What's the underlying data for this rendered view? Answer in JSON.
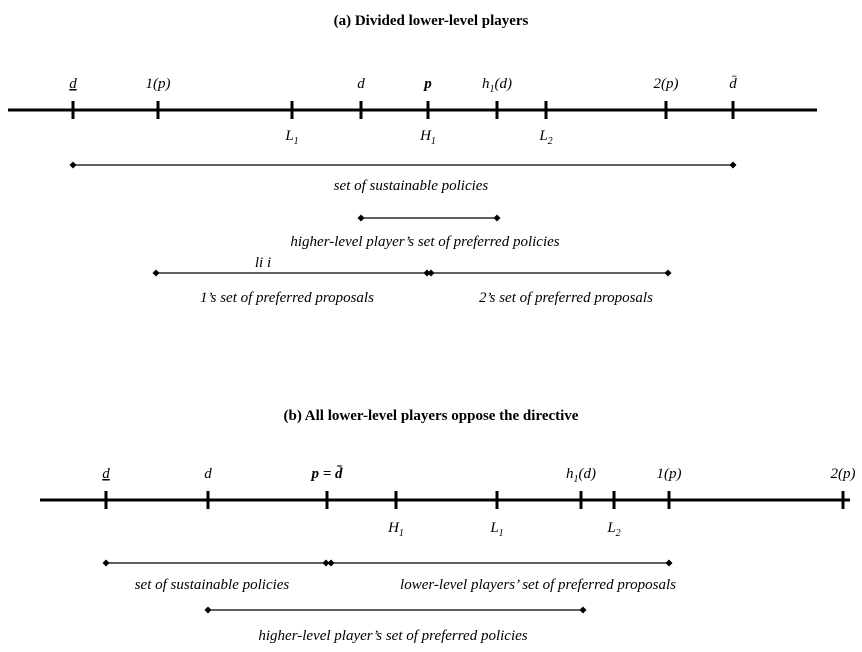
{
  "panel_a": {
    "title": "(a) Divided lower-level players",
    "top_labels": [
      "d",
      "1(p)",
      "d",
      "p",
      {
        "base": "h",
        "sub": "1",
        "tail": "(d)"
      },
      "2(p)",
      "d̄"
    ],
    "bottom_labels": [
      {
        "base": "L",
        "sub": "1"
      },
      {
        "base": "H",
        "sub": "1"
      },
      {
        "base": "L",
        "sub": "2"
      }
    ],
    "intervals": [
      "set of sustainable policies",
      "higher-level player’s set of preferred policies",
      "1’s set of preferred proposals",
      "2’s set of preferred proposals"
    ],
    "note": "li i"
  },
  "panel_b": {
    "title": "(b) All lower-level players oppose the directive",
    "top_labels": [
      "d",
      "d",
      "p = d̄",
      {
        "base": "h",
        "sub": "1",
        "tail": "(d)"
      },
      "1(p)",
      "2(p)"
    ],
    "bottom_labels": [
      {
        "base": "H",
        "sub": "1"
      },
      {
        "base": "L",
        "sub": "1"
      },
      {
        "base": "L",
        "sub": "2"
      }
    ],
    "intervals": [
      "set of sustainable policies",
      "lower-level players’ set of preferred proposals",
      "higher-level player’s set of preferred policies"
    ]
  }
}
